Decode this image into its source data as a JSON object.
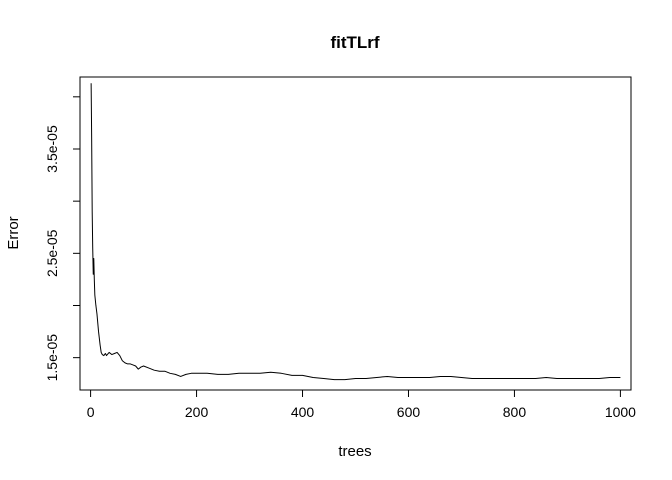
{
  "chart_data": {
    "type": "line",
    "title": "fitTLrf",
    "xlabel": "trees",
    "ylabel": "Error",
    "xlim": [
      -20,
      1020
    ],
    "ylim": [
      1.19e-05,
      4.19e-05
    ],
    "grid": false,
    "x_ticks": [
      0,
      200,
      400,
      600,
      800,
      1000
    ],
    "x_tick_labels": [
      "0",
      "200",
      "400",
      "600",
      "800",
      "1000"
    ],
    "y_ticks": [
      1.5e-05,
      2e-05,
      2.5e-05,
      3e-05,
      3.5e-05,
      4e-05
    ],
    "y_tick_labels": [
      "1.5e-05",
      "",
      "2.5e-05",
      "",
      "3.5e-05",
      ""
    ],
    "series": [
      {
        "x": [
          1,
          2,
          3,
          4,
          5,
          6,
          7,
          8,
          10,
          12,
          15,
          18,
          20,
          22,
          25,
          28,
          30,
          35,
          40,
          45,
          50,
          55,
          60,
          65,
          70,
          75,
          80,
          85,
          90,
          95,
          100,
          110,
          120,
          130,
          140,
          150,
          160,
          170,
          180,
          190,
          200,
          220,
          240,
          260,
          280,
          300,
          320,
          340,
          360,
          380,
          400,
          420,
          440,
          460,
          480,
          500,
          520,
          540,
          560,
          580,
          600,
          620,
          640,
          660,
          680,
          700,
          720,
          740,
          760,
          780,
          800,
          820,
          840,
          860,
          880,
          900,
          920,
          940,
          960,
          980,
          1000
        ],
        "values": [
          4.13e-05,
          3.6e-05,
          2.9e-05,
          2.55e-05,
          2.3e-05,
          2.45e-05,
          2.25e-05,
          2.1e-05,
          2e-05,
          1.92e-05,
          1.75e-05,
          1.62e-05,
          1.55e-05,
          1.53e-05,
          1.52e-05,
          1.54e-05,
          1.52e-05,
          1.55e-05,
          1.53e-05,
          1.54e-05,
          1.55e-05,
          1.52e-05,
          1.47e-05,
          1.45e-05,
          1.44e-05,
          1.44e-05,
          1.43e-05,
          1.42e-05,
          1.39e-05,
          1.41e-05,
          1.42e-05,
          1.4e-05,
          1.38e-05,
          1.37e-05,
          1.37e-05,
          1.35e-05,
          1.34e-05,
          1.32e-05,
          1.34e-05,
          1.35e-05,
          1.35e-05,
          1.35e-05,
          1.34e-05,
          1.34e-05,
          1.35e-05,
          1.35e-05,
          1.35e-05,
          1.36e-05,
          1.35e-05,
          1.33e-05,
          1.33e-05,
          1.31e-05,
          1.3e-05,
          1.29e-05,
          1.29e-05,
          1.3e-05,
          1.3e-05,
          1.31e-05,
          1.32e-05,
          1.31e-05,
          1.31e-05,
          1.31e-05,
          1.31e-05,
          1.32e-05,
          1.32e-05,
          1.31e-05,
          1.3e-05,
          1.3e-05,
          1.3e-05,
          1.3e-05,
          1.3e-05,
          1.3e-05,
          1.3e-05,
          1.31e-05,
          1.3e-05,
          1.3e-05,
          1.3e-05,
          1.3e-05,
          1.3e-05,
          1.31e-05,
          1.31e-05
        ],
        "color": "#000000"
      }
    ]
  }
}
